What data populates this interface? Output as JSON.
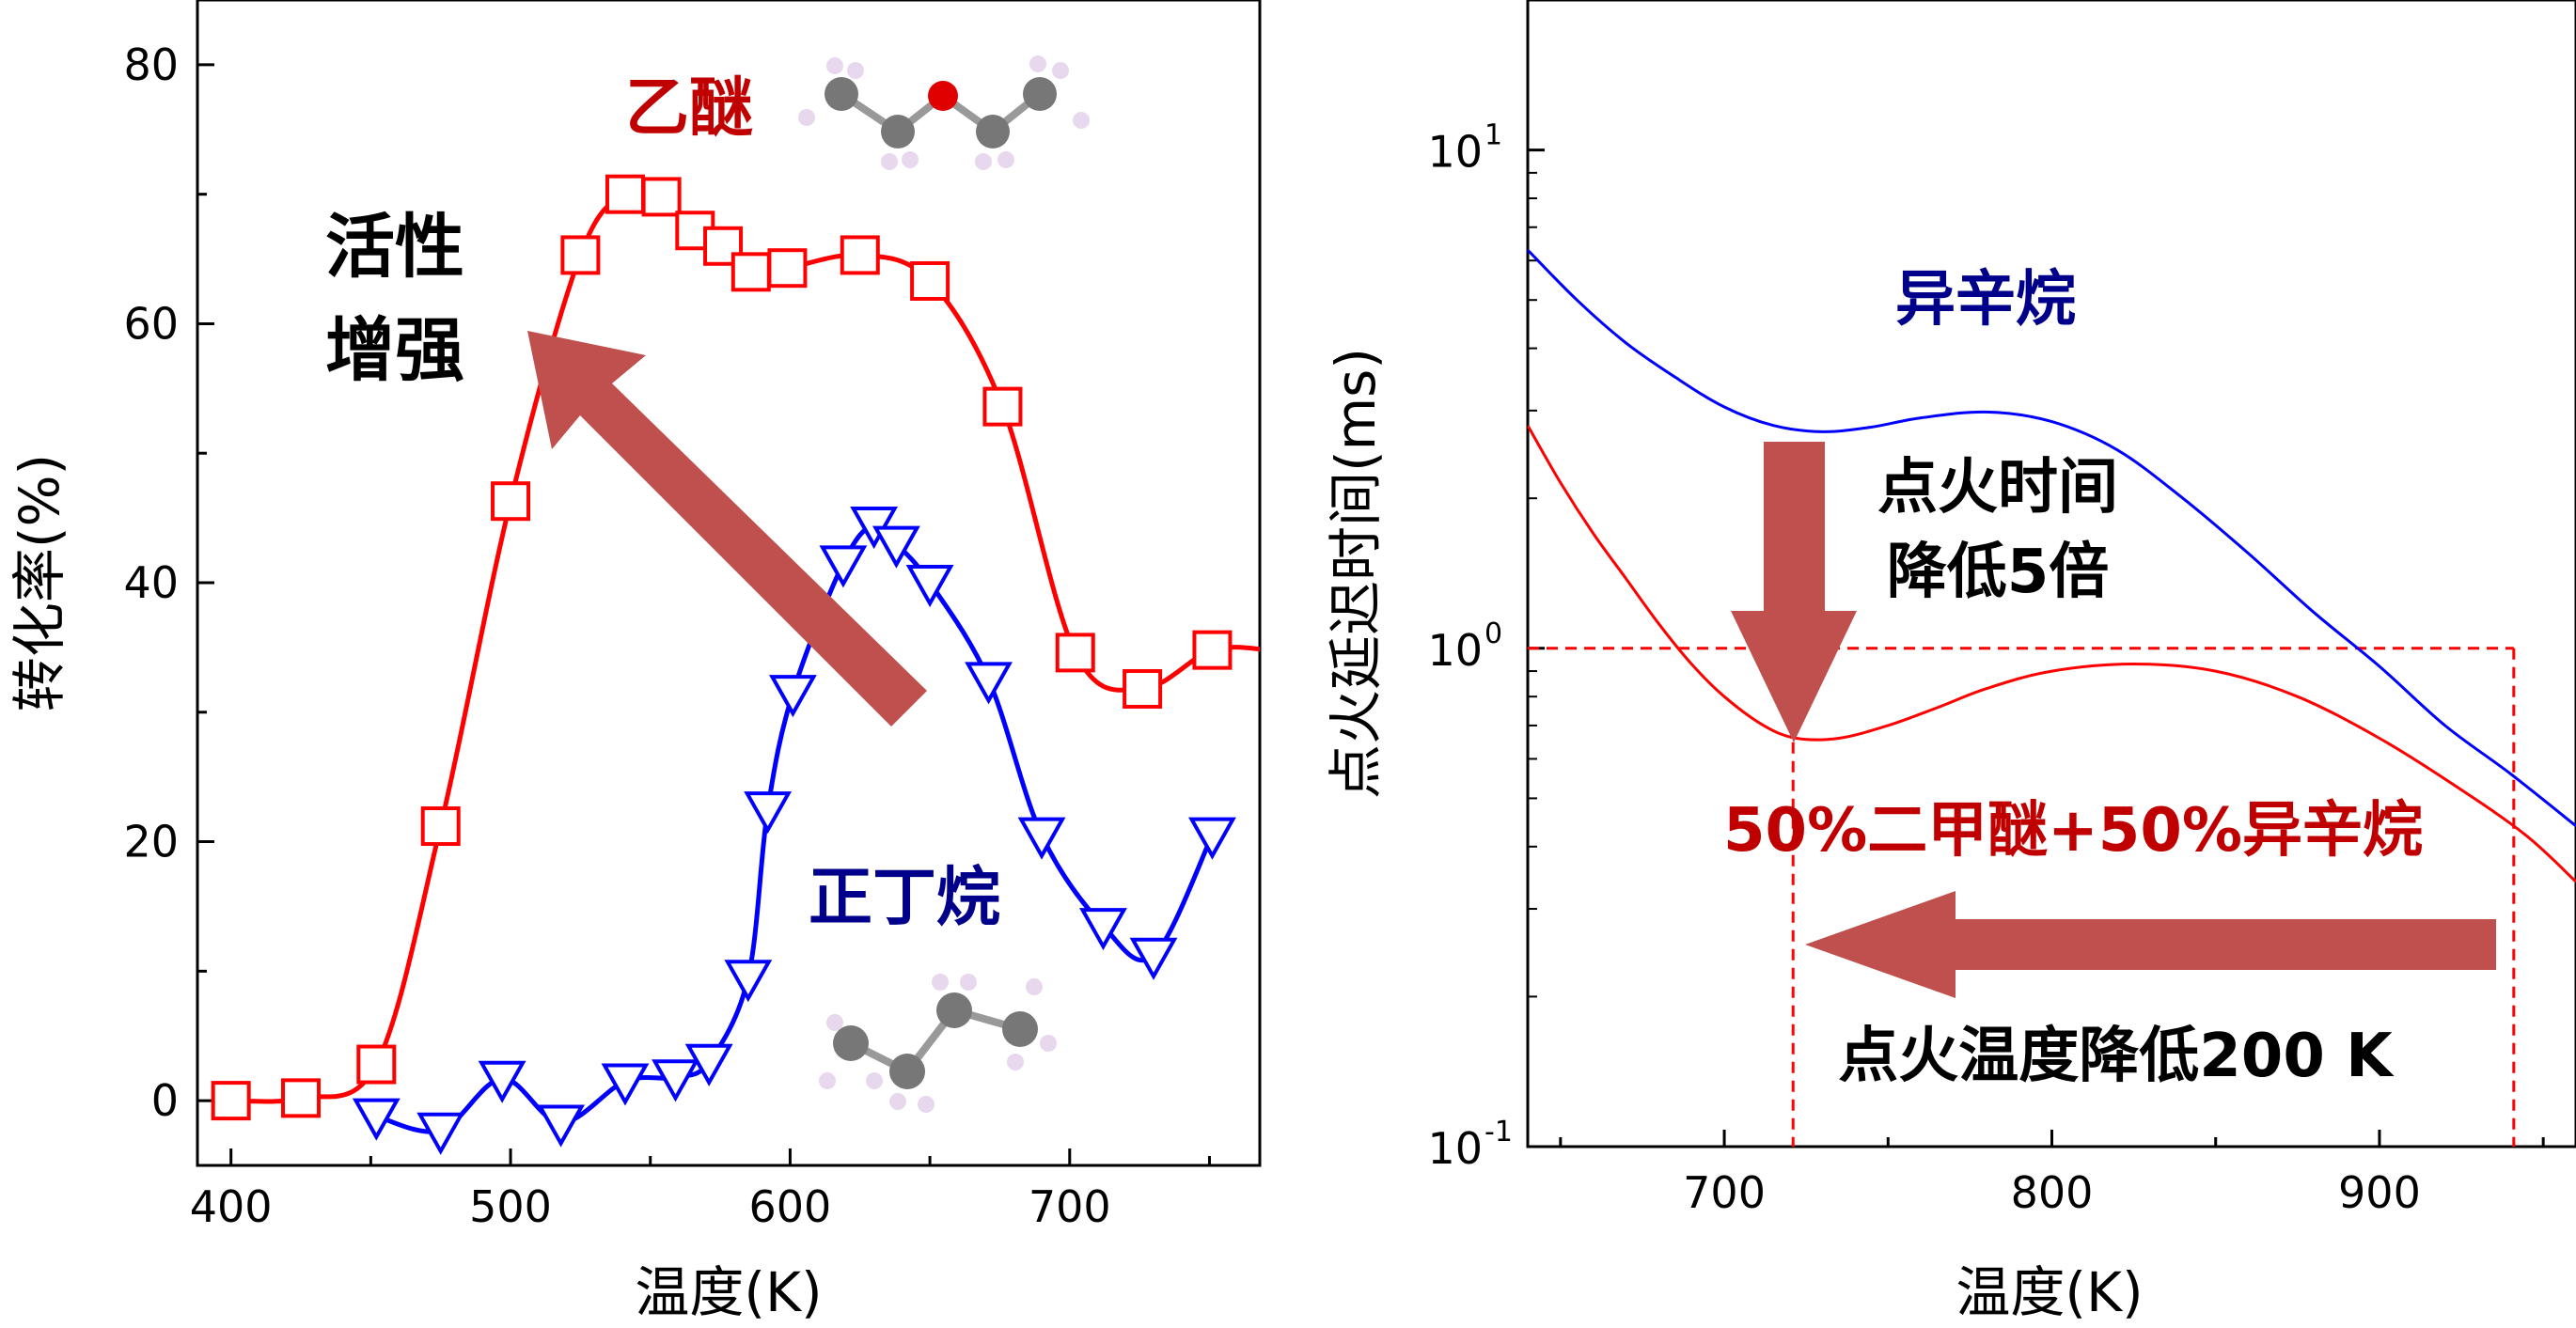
{
  "chart_data": [
    {
      "type": "line",
      "panel": "left",
      "xlabel": "温度(K)",
      "ylabel": "转化率(%)",
      "xlim": [
        388,
        768
      ],
      "ylim": [
        -5,
        85
      ],
      "xticks": [
        "400",
        "500",
        "600",
        "700"
      ],
      "yticks": [
        "0",
        "20",
        "40",
        "60",
        "80"
      ],
      "series": [
        {
          "name": "乙醚",
          "color": "#ff0000",
          "marker": "square",
          "x": [
            400,
            425,
            452,
            475,
            500,
            525,
            541,
            554,
            566,
            576,
            586,
            599,
            625,
            650,
            676,
            702,
            726,
            751
          ],
          "y": [
            0,
            0.2,
            2.8,
            21.2,
            46.3,
            65.3,
            70,
            69.8,
            67.2,
            66,
            64,
            64.3,
            65.3,
            63.3,
            53.6,
            34.6,
            31.8,
            34.8
          ]
        },
        {
          "name": "正丁烷",
          "color": "#0000ff",
          "marker": "triangle-down",
          "x": [
            452,
            475,
            497,
            518,
            541,
            559,
            571,
            585,
            592,
            601,
            619,
            630,
            638,
            650,
            671,
            690,
            712,
            730,
            751
          ],
          "y": [
            -1.2,
            -2.3,
            1.7,
            -1.7,
            1.5,
            1.8,
            3,
            9.5,
            22.5,
            31.5,
            41.5,
            44.5,
            43,
            40,
            32.5,
            20.5,
            13.5,
            11.2,
            20.5
          ]
        }
      ],
      "annotations": {
        "series1_label": "乙醚",
        "series2_label": "正丁烷",
        "arrow_text_line1": "活性",
        "arrow_text_line2": "增强"
      }
    },
    {
      "type": "line",
      "panel": "right",
      "yscale": "log",
      "xlabel": "温度(K)",
      "ylabel": "点火延迟时间(ms)",
      "xlim": [
        640,
        960
      ],
      "ylim": [
        0.1,
        20
      ],
      "xticks": [
        "700",
        "800",
        "900"
      ],
      "yticks": [
        {
          "base": "10",
          "exp": "-1",
          "value": 0.1
        },
        {
          "base": "10",
          "exp": "0",
          "value": 1
        },
        {
          "base": "10",
          "exp": "1",
          "value": 10
        }
      ],
      "series": [
        {
          "name": "异辛烷",
          "color": "#0000ff",
          "x": [
            640,
            655,
            670,
            685,
            700,
            715,
            730,
            745,
            760,
            780,
            800,
            820,
            840,
            860,
            880,
            900,
            920,
            940,
            960
          ],
          "y": [
            6.3,
            5.0,
            4.1,
            3.5,
            3.05,
            2.8,
            2.72,
            2.78,
            2.9,
            2.98,
            2.85,
            2.5,
            2.0,
            1.55,
            1.18,
            0.92,
            0.7,
            0.56,
            0.44
          ]
        },
        {
          "name": "50%二甲醚+50%异辛烷",
          "color": "#ff0000",
          "x": [
            640,
            650,
            660,
            670,
            680,
            690,
            700,
            712,
            722,
            735,
            750,
            765,
            780,
            800,
            825,
            850,
            875,
            900,
            925,
            945,
            960
          ],
          "y": [
            2.8,
            2.15,
            1.7,
            1.38,
            1.12,
            0.93,
            0.8,
            0.7,
            0.66,
            0.66,
            0.7,
            0.76,
            0.83,
            0.9,
            0.93,
            0.9,
            0.8,
            0.66,
            0.52,
            0.42,
            0.34
          ]
        }
      ],
      "reference_lines": {
        "horizontal_y": 1.0,
        "vertical_x": [
          721,
          941
        ]
      },
      "annotations": {
        "series1_label": "异辛烷",
        "series2_label": "50%二甲醚+50%异辛烷",
        "down_arrow_line1": "点火时间",
        "down_arrow_line2": "降低5倍",
        "left_arrow_text": "点火温度降低200 K"
      }
    }
  ],
  "colors": {
    "red": "#ff0000",
    "blue": "#0000ff",
    "dark_red_text": "#c00000",
    "dark_blue_text": "#00008b",
    "arrow": "#c0504d"
  }
}
